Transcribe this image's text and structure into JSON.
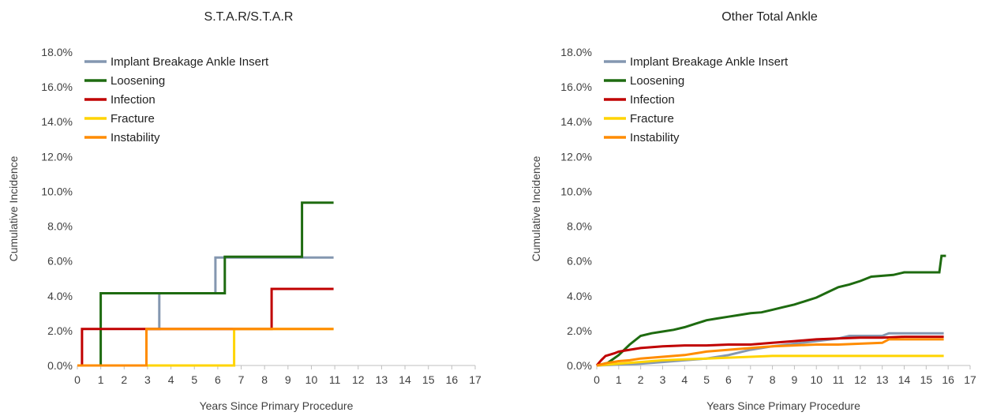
{
  "chart_data": [
    {
      "type": "line",
      "title": "S.T.A.R/S.T.A.R",
      "xlabel": "Years Since Primary Procedure",
      "ylabel": "Cumulative Incidence",
      "xlim": [
        0,
        17
      ],
      "ylim": [
        0,
        18
      ],
      "xticks": [
        "0",
        "1",
        "2",
        "3",
        "4",
        "5",
        "6",
        "7",
        "8",
        "9",
        "10",
        "11",
        "12",
        "13",
        "14",
        "15",
        "16",
        "17"
      ],
      "yticks": [
        "0.0%",
        "2.0%",
        "4.0%",
        "6.0%",
        "8.0%",
        "10.0%",
        "12.0%",
        "14.0%",
        "16.0%",
        "18.0%"
      ],
      "legend_position": "top-left",
      "series": [
        {
          "name": "Implant Breakage Ankle Insert",
          "color": "#8497b0",
          "x": [
            0,
            2.95,
            2.95,
            3.5,
            3.5,
            5.9,
            5.9,
            10.95
          ],
          "y": [
            0,
            0,
            2.1,
            2.1,
            4.15,
            4.15,
            6.2,
            6.2
          ]
        },
        {
          "name": "Loosening",
          "color": "#1e6b10",
          "x": [
            0,
            1.0,
            1.0,
            6.3,
            6.3,
            9.6,
            9.6,
            10.95
          ],
          "y": [
            0,
            0,
            4.15,
            4.15,
            6.25,
            6.25,
            9.35,
            9.35
          ]
        },
        {
          "name": "Infection",
          "color": "#c00000",
          "x": [
            0,
            0.2,
            0.2,
            8.3,
            8.3,
            10.95
          ],
          "y": [
            0,
            0,
            2.1,
            2.1,
            4.4,
            4.4
          ]
        },
        {
          "name": "Fracture",
          "color": "#ffd400",
          "x": [
            0,
            6.7,
            6.7,
            10.95
          ],
          "y": [
            0,
            0,
            2.1,
            2.1
          ]
        },
        {
          "name": "Instability",
          "color": "#ff8c00",
          "x": [
            0,
            2.95,
            2.95,
            10.95
          ],
          "y": [
            0,
            0,
            2.1,
            2.1
          ]
        }
      ]
    },
    {
      "type": "line",
      "title": "Other Total Ankle",
      "xlabel": "Years Since Primary Procedure",
      "ylabel": "Cumulative Incidence",
      "xlim": [
        0,
        17
      ],
      "ylim": [
        0,
        18
      ],
      "xticks": [
        "0",
        "1",
        "2",
        "3",
        "4",
        "5",
        "6",
        "7",
        "8",
        "9",
        "10",
        "11",
        "12",
        "13",
        "14",
        "15",
        "16",
        "17"
      ],
      "yticks": [
        "0.0%",
        "2.0%",
        "4.0%",
        "6.0%",
        "8.0%",
        "10.0%",
        "12.0%",
        "14.0%",
        "16.0%",
        "18.0%"
      ],
      "legend_position": "top-left",
      "series": [
        {
          "name": "Implant Breakage Ankle Insert",
          "color": "#8497b0",
          "x": [
            0,
            1,
            2,
            3,
            4,
            5,
            6,
            7,
            8,
            9,
            10,
            11,
            11.5,
            12,
            13,
            13.3,
            14,
            15,
            15.8
          ],
          "y": [
            0,
            0.05,
            0.1,
            0.2,
            0.3,
            0.4,
            0.6,
            0.9,
            1.1,
            1.25,
            1.4,
            1.55,
            1.7,
            1.7,
            1.7,
            1.85,
            1.85,
            1.85,
            1.85
          ]
        },
        {
          "name": "Loosening",
          "color": "#1e6b10",
          "x": [
            0,
            0.5,
            1,
            1.5,
            2,
            2.5,
            3,
            3.5,
            4,
            4.5,
            5,
            5.5,
            6,
            6.5,
            7,
            7.5,
            8,
            8.5,
            9,
            9.5,
            10,
            10.5,
            11,
            11.5,
            12,
            12.5,
            13,
            13.5,
            14,
            14.5,
            15,
            15.6,
            15.7,
            15.9
          ],
          "y": [
            0,
            0.15,
            0.6,
            1.2,
            1.7,
            1.85,
            1.95,
            2.05,
            2.2,
            2.4,
            2.6,
            2.7,
            2.8,
            2.9,
            3.0,
            3.05,
            3.2,
            3.35,
            3.5,
            3.7,
            3.9,
            4.2,
            4.5,
            4.65,
            4.85,
            5.1,
            5.15,
            5.2,
            5.35,
            5.35,
            5.35,
            5.35,
            6.3,
            6.3
          ]
        },
        {
          "name": "Infection",
          "color": "#c00000",
          "x": [
            0,
            0.2,
            0.4,
            0.8,
            1,
            1.5,
            2,
            3,
            4,
            5,
            6,
            7,
            8,
            9,
            10,
            11,
            12,
            13,
            14,
            15,
            15.8
          ],
          "y": [
            0,
            0.3,
            0.55,
            0.7,
            0.8,
            0.9,
            1.0,
            1.1,
            1.15,
            1.15,
            1.2,
            1.2,
            1.3,
            1.4,
            1.5,
            1.55,
            1.6,
            1.6,
            1.65,
            1.65,
            1.65
          ]
        },
        {
          "name": "Fracture",
          "color": "#ffd400",
          "x": [
            0,
            1,
            2,
            3,
            4,
            5,
            6,
            7,
            8,
            9,
            10,
            11,
            12,
            13,
            14,
            15,
            15.8
          ],
          "y": [
            0,
            0.1,
            0.2,
            0.3,
            0.35,
            0.4,
            0.45,
            0.5,
            0.55,
            0.55,
            0.55,
            0.55,
            0.55,
            0.55,
            0.55,
            0.55,
            0.55
          ]
        },
        {
          "name": "Instability",
          "color": "#ff8c00",
          "x": [
            0,
            0.5,
            1,
            1.5,
            2,
            2.5,
            3,
            3.5,
            4,
            4.5,
            5,
            5.5,
            6,
            6.5,
            7,
            7.5,
            8,
            9,
            10,
            11,
            12,
            13,
            13.3,
            14,
            15,
            15.8
          ],
          "y": [
            0,
            0.15,
            0.25,
            0.3,
            0.4,
            0.45,
            0.5,
            0.55,
            0.6,
            0.7,
            0.8,
            0.85,
            0.9,
            0.95,
            1.0,
            1.05,
            1.1,
            1.15,
            1.2,
            1.2,
            1.25,
            1.3,
            1.5,
            1.5,
            1.5,
            1.5
          ]
        }
      ]
    }
  ]
}
